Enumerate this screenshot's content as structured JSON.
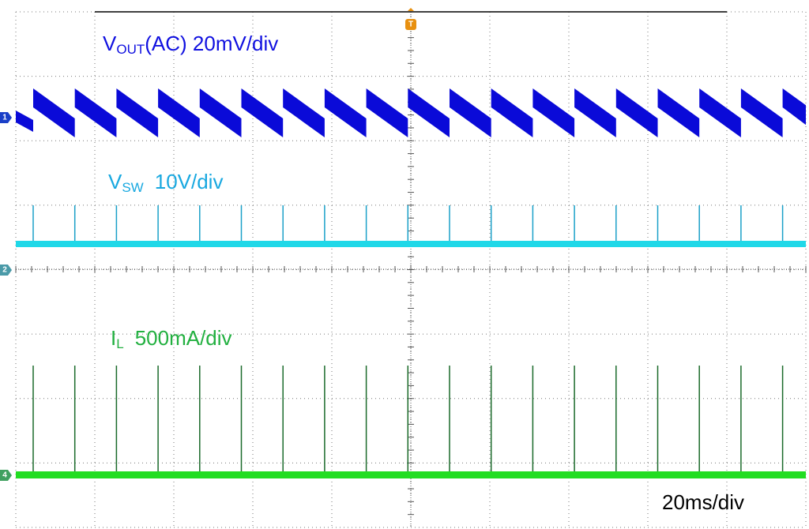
{
  "channels": [
    {
      "marker": "1",
      "name": "V",
      "sub": "OUT",
      "scale": "(AC) 20mV/div"
    },
    {
      "marker": "2",
      "name": "V",
      "sub": "SW",
      "scale": "10V/div"
    },
    {
      "marker": "4",
      "name": "I",
      "sub": "L",
      "scale": "500mA/div"
    }
  ],
  "trigger": "T",
  "timebase": "20ms/div"
}
